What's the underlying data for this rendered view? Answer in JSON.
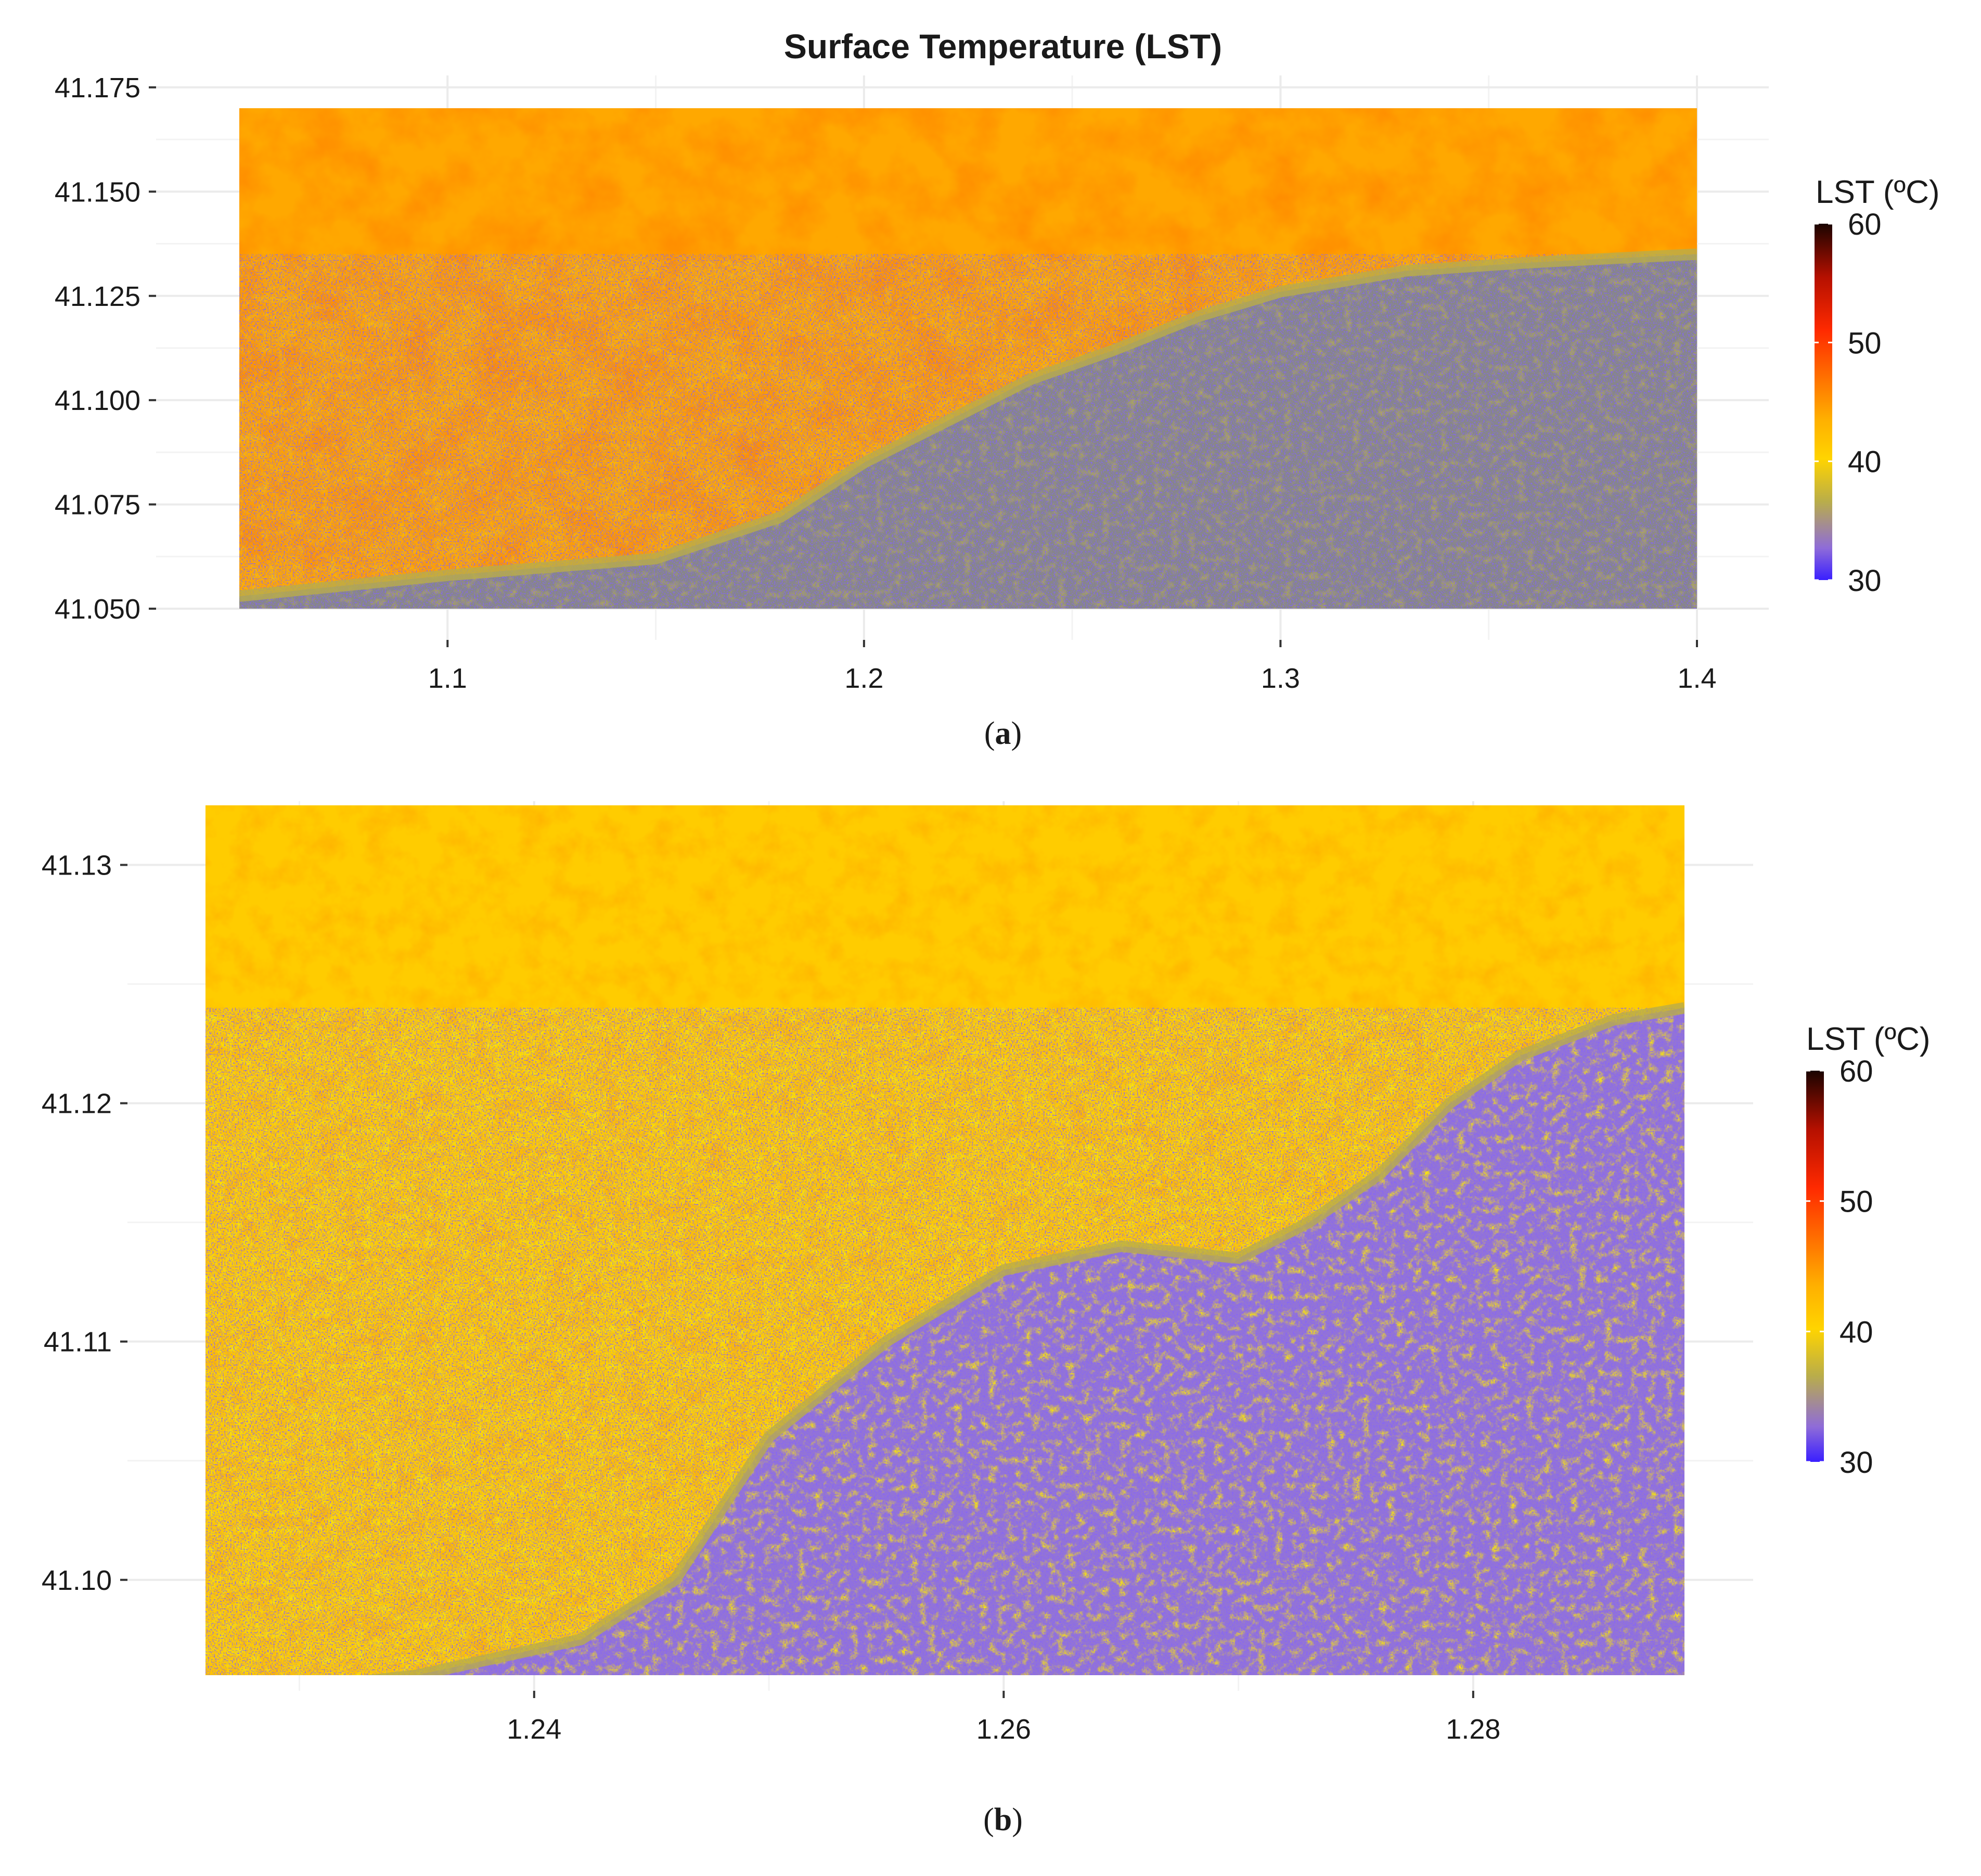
{
  "colors": {
    "water": "#878787",
    "cool": "#3a1fff",
    "scale": [
      "#3a1fff",
      "#8f6cd8",
      "#b9ad4a",
      "#ffd400",
      "#ffb000",
      "#ff6a00",
      "#ff2a00",
      "#b51000",
      "#1a0400"
    ]
  },
  "chart_data": [
    {
      "type": "heatmap",
      "title": "Surface Temperature (LST)",
      "panel_label": "a",
      "xlabel": "",
      "ylabel": "",
      "xlim": [
        1.05,
        1.4
      ],
      "ylim": [
        41.05,
        41.17
      ],
      "x_ticks": [
        "1.1",
        "1.2",
        "1.3",
        "1.4"
      ],
      "x_tick_values": [
        1.1,
        1.2,
        1.3,
        1.4
      ],
      "y_ticks": [
        "41.050",
        "41.075",
        "41.100",
        "41.125",
        "41.150",
        "41.175"
      ],
      "y_tick_values": [
        41.05,
        41.075,
        41.1,
        41.125,
        41.15,
        41.175
      ],
      "grid": true,
      "legend": {
        "title": "LST (ºC)",
        "position": "right",
        "ticks": [
          "30",
          "40",
          "50",
          "60"
        ],
        "tick_values": [
          30,
          40,
          50,
          60
        ],
        "range": [
          30,
          60
        ]
      },
      "coastline": [
        [
          1.05,
          41.053
        ],
        [
          1.1,
          41.058
        ],
        [
          1.15,
          41.062
        ],
        [
          1.18,
          41.072
        ],
        [
          1.2,
          41.085
        ],
        [
          1.22,
          41.095
        ],
        [
          1.24,
          41.105
        ],
        [
          1.26,
          41.112
        ],
        [
          1.28,
          41.12
        ],
        [
          1.3,
          41.126
        ],
        [
          1.33,
          41.131
        ],
        [
          1.36,
          41.133
        ],
        [
          1.4,
          41.135
        ]
      ]
    },
    {
      "type": "heatmap",
      "title": "",
      "panel_label": "b",
      "xlabel": "",
      "ylabel": "",
      "xlim": [
        1.226,
        1.289
      ],
      "ylim": [
        41.096,
        41.1325
      ],
      "x_ticks": [
        "1.24",
        "1.26",
        "1.28"
      ],
      "x_tick_values": [
        1.24,
        1.26,
        1.28
      ],
      "y_ticks": [
        "41.10",
        "41.11",
        "41.12",
        "41.13"
      ],
      "y_tick_values": [
        41.1,
        41.11,
        41.12,
        41.13
      ],
      "grid": true,
      "legend": {
        "title": "LST (ºC)",
        "position": "right",
        "ticks": [
          "30",
          "40",
          "50",
          "60"
        ],
        "tick_values": [
          30,
          40,
          50,
          60
        ],
        "range": [
          30,
          60
        ]
      },
      "coastline": [
        [
          1.226,
          41.095
        ],
        [
          1.235,
          41.096
        ],
        [
          1.242,
          41.0975
        ],
        [
          1.246,
          41.1
        ],
        [
          1.25,
          41.106
        ],
        [
          1.255,
          41.11
        ],
        [
          1.26,
          41.113
        ],
        [
          1.265,
          41.114
        ],
        [
          1.27,
          41.1135
        ],
        [
          1.273,
          41.115
        ],
        [
          1.276,
          41.117
        ],
        [
          1.279,
          41.12
        ],
        [
          1.282,
          41.122
        ],
        [
          1.286,
          41.1235
        ],
        [
          1.289,
          41.124
        ]
      ]
    }
  ]
}
